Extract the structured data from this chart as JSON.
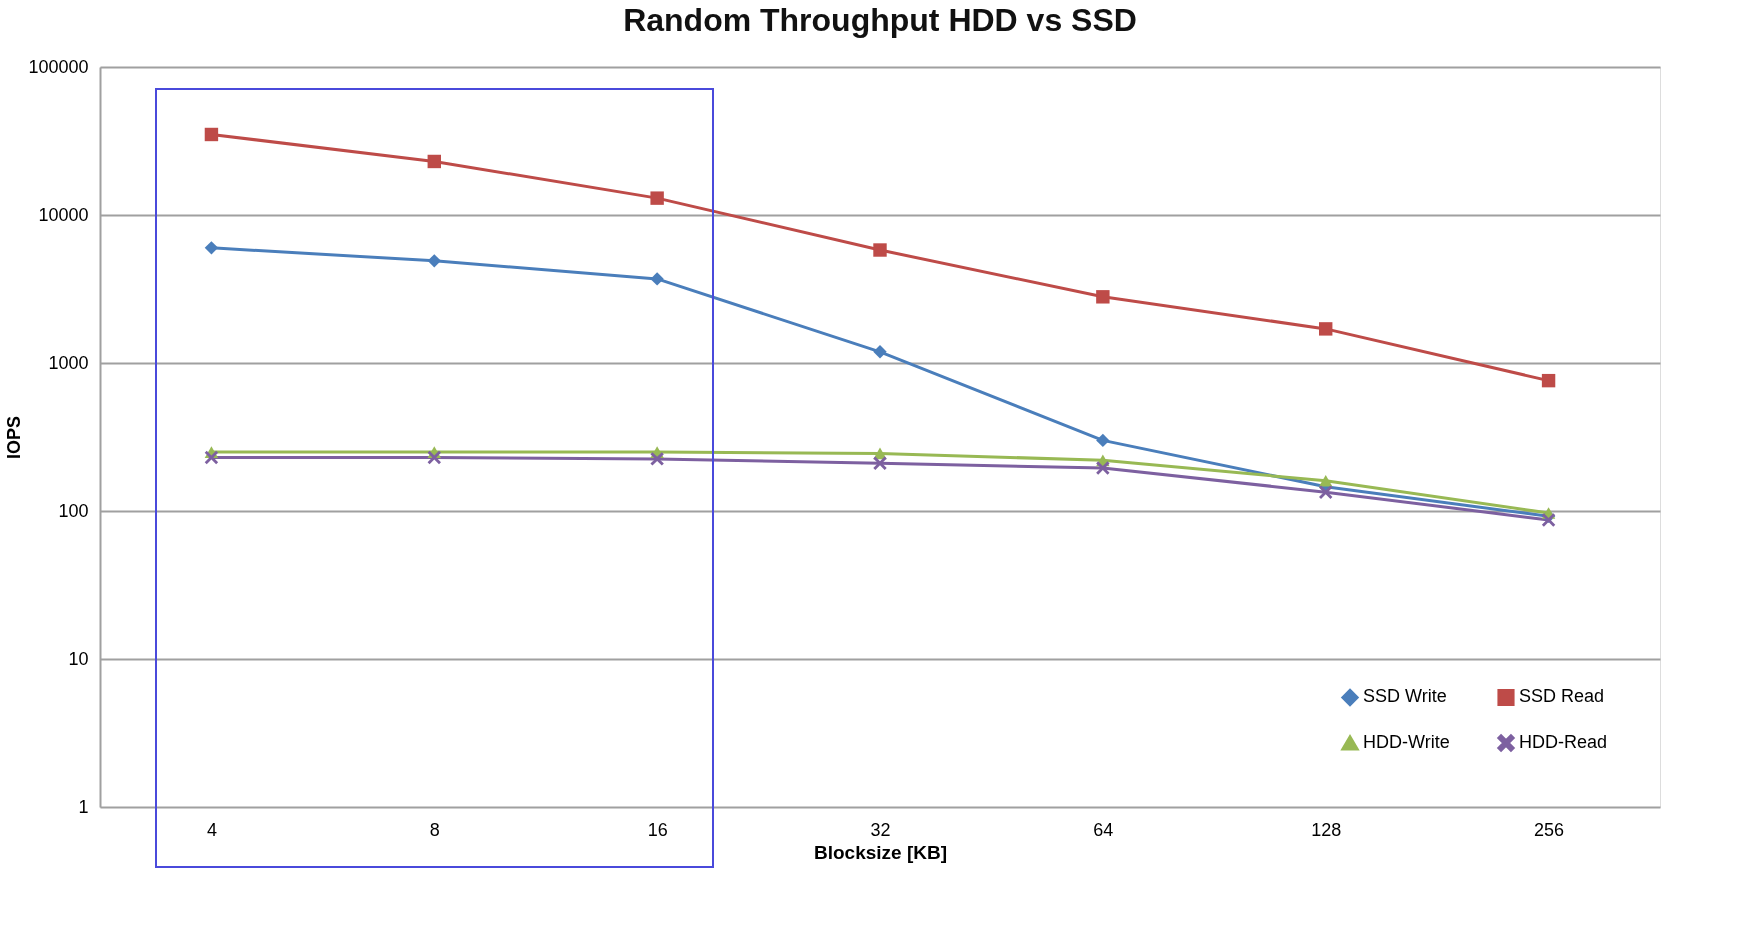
{
  "chart_data": {
    "type": "line",
    "title": "Random Throughput HDD vs SSD",
    "xlabel": "Blocksize [KB]",
    "ylabel": "IOPS",
    "categories": [
      "4",
      "8",
      "16",
      "32",
      "64",
      "128",
      "256"
    ],
    "series": [
      {
        "name": "SSD  Write",
        "color": "#4a7ebb",
        "marker": "diamond",
        "values": [
          6000,
          4900,
          3700,
          1190,
          300,
          146,
          92
        ]
      },
      {
        "name": "SSD  Read",
        "color": "#be4b48",
        "marker": "square",
        "values": [
          35000,
          23000,
          13000,
          5800,
          2800,
          1700,
          760
        ]
      },
      {
        "name": "HDD-Write",
        "color": "#98b954",
        "marker": "triangle",
        "values": [
          250,
          250,
          250,
          245,
          220,
          160,
          97
        ]
      },
      {
        "name": "HDD-Read",
        "color": "#7d60a0",
        "marker": "cross",
        "values": [
          230,
          230,
          225,
          210,
          195,
          134,
          87
        ]
      }
    ],
    "log": "y",
    "ylim": [
      1,
      100000
    ],
    "yticks": [
      1,
      10,
      100,
      1000,
      10000,
      100000
    ],
    "grid": "y",
    "legend": "bottom right"
  }
}
